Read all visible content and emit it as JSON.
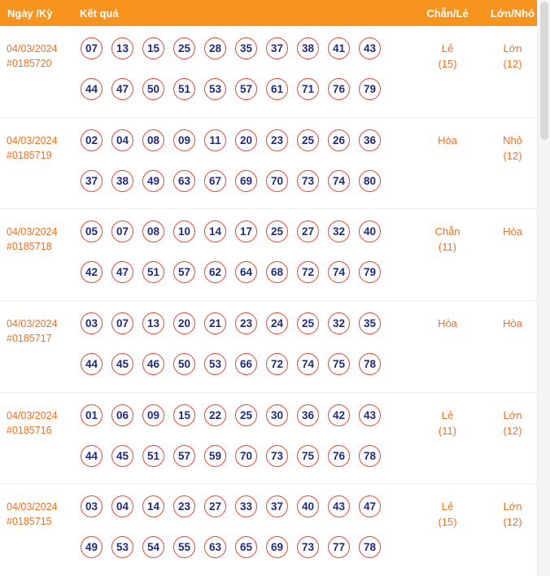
{
  "header": {
    "col_date": "Ngày /Kỳ",
    "col_result": "Kết quả",
    "col_even_odd": "Chẵn/Lẻ",
    "col_big_small": "Lớn/Nhỏ"
  },
  "rows": [
    {
      "date": "04/03/2024",
      "draw_id": "#0185720",
      "numbers_line1": [
        "07",
        "13",
        "15",
        "25",
        "28",
        "35",
        "37",
        "38",
        "41",
        "43"
      ],
      "numbers_line2": [
        "44",
        "47",
        "50",
        "51",
        "53",
        "57",
        "61",
        "71",
        "76",
        "79"
      ],
      "even_odd": "Lẻ",
      "even_odd_count": "(15)",
      "big_small": "Lớn",
      "big_small_count": "(12)"
    },
    {
      "date": "04/03/2024",
      "draw_id": "#0185719",
      "numbers_line1": [
        "02",
        "04",
        "08",
        "09",
        "11",
        "20",
        "23",
        "25",
        "26",
        "36"
      ],
      "numbers_line2": [
        "37",
        "38",
        "49",
        "63",
        "67",
        "69",
        "70",
        "73",
        "74",
        "80"
      ],
      "even_odd": "Hòa",
      "even_odd_count": "",
      "big_small": "Nhỏ",
      "big_small_count": "(12)"
    },
    {
      "date": "04/03/2024",
      "draw_id": "#0185718",
      "numbers_line1": [
        "05",
        "07",
        "08",
        "10",
        "14",
        "17",
        "25",
        "27",
        "32",
        "40"
      ],
      "numbers_line2": [
        "42",
        "47",
        "51",
        "57",
        "62",
        "64",
        "68",
        "72",
        "74",
        "79"
      ],
      "even_odd": "Chẵn",
      "even_odd_count": "(11)",
      "big_small": "Hòa",
      "big_small_count": ""
    },
    {
      "date": "04/03/2024",
      "draw_id": "#0185717",
      "numbers_line1": [
        "03",
        "07",
        "13",
        "20",
        "21",
        "23",
        "24",
        "25",
        "32",
        "35"
      ],
      "numbers_line2": [
        "44",
        "45",
        "46",
        "50",
        "53",
        "66",
        "72",
        "74",
        "75",
        "78"
      ],
      "even_odd": "Hòa",
      "even_odd_count": "",
      "big_small": "Hòa",
      "big_small_count": ""
    },
    {
      "date": "04/03/2024",
      "draw_id": "#0185716",
      "numbers_line1": [
        "01",
        "06",
        "09",
        "15",
        "22",
        "25",
        "30",
        "36",
        "42",
        "43"
      ],
      "numbers_line2": [
        "44",
        "45",
        "51",
        "57",
        "59",
        "70",
        "73",
        "75",
        "76",
        "78"
      ],
      "even_odd": "Lẻ",
      "even_odd_count": "(11)",
      "big_small": "Lớn",
      "big_small_count": "(12)"
    },
    {
      "date": "04/03/2024",
      "draw_id": "#0185715",
      "numbers_line1": [
        "03",
        "04",
        "14",
        "23",
        "27",
        "33",
        "37",
        "40",
        "43",
        "47"
      ],
      "numbers_line2": [
        "49",
        "53",
        "54",
        "55",
        "63",
        "65",
        "69",
        "73",
        "77",
        "78"
      ],
      "even_odd": "Lẻ",
      "even_odd_count": "(15)",
      "big_small": "Lớn",
      "big_small_count": "(12)"
    }
  ],
  "colors": {
    "header_bg": "#f7941e",
    "accent_orange": "#f26f21",
    "ball_border": "#e5432e",
    "number_navy": "#23297a"
  }
}
